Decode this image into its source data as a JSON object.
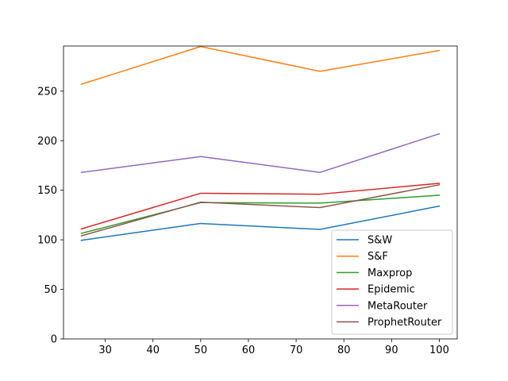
{
  "chart_data": {
    "type": "line",
    "title": "",
    "xlabel": "",
    "ylabel": "",
    "x": [
      25,
      50,
      75,
      100
    ],
    "xlim": [
      21.25,
      103.75
    ],
    "ylim": [
      0,
      295.5
    ],
    "xticks": [
      30,
      40,
      50,
      60,
      70,
      80,
      90,
      100
    ],
    "yticks": [
      0,
      50,
      100,
      150,
      200,
      250
    ],
    "grid": false,
    "legend_position": "lower-right",
    "series": [
      {
        "name": "S&W",
        "color": "#1f77b4",
        "values": [
          99.5,
          116.5,
          110.5,
          134
        ]
      },
      {
        "name": "S&F",
        "color": "#ff7f0e",
        "values": [
          257,
          295,
          270,
          291
        ]
      },
      {
        "name": "Maxprop",
        "color": "#2ca02c",
        "values": [
          106.5,
          137.5,
          137,
          145
        ]
      },
      {
        "name": "Epidemic",
        "color": "#d62728",
        "values": [
          111,
          147,
          146,
          157
        ]
      },
      {
        "name": "MetaRouter",
        "color": "#9467bd",
        "values": [
          168,
          184,
          168,
          207
        ]
      },
      {
        "name": "ProphetRouter",
        "color": "#8c564b",
        "values": [
          104,
          138,
          132.5,
          155.5
        ]
      }
    ]
  }
}
